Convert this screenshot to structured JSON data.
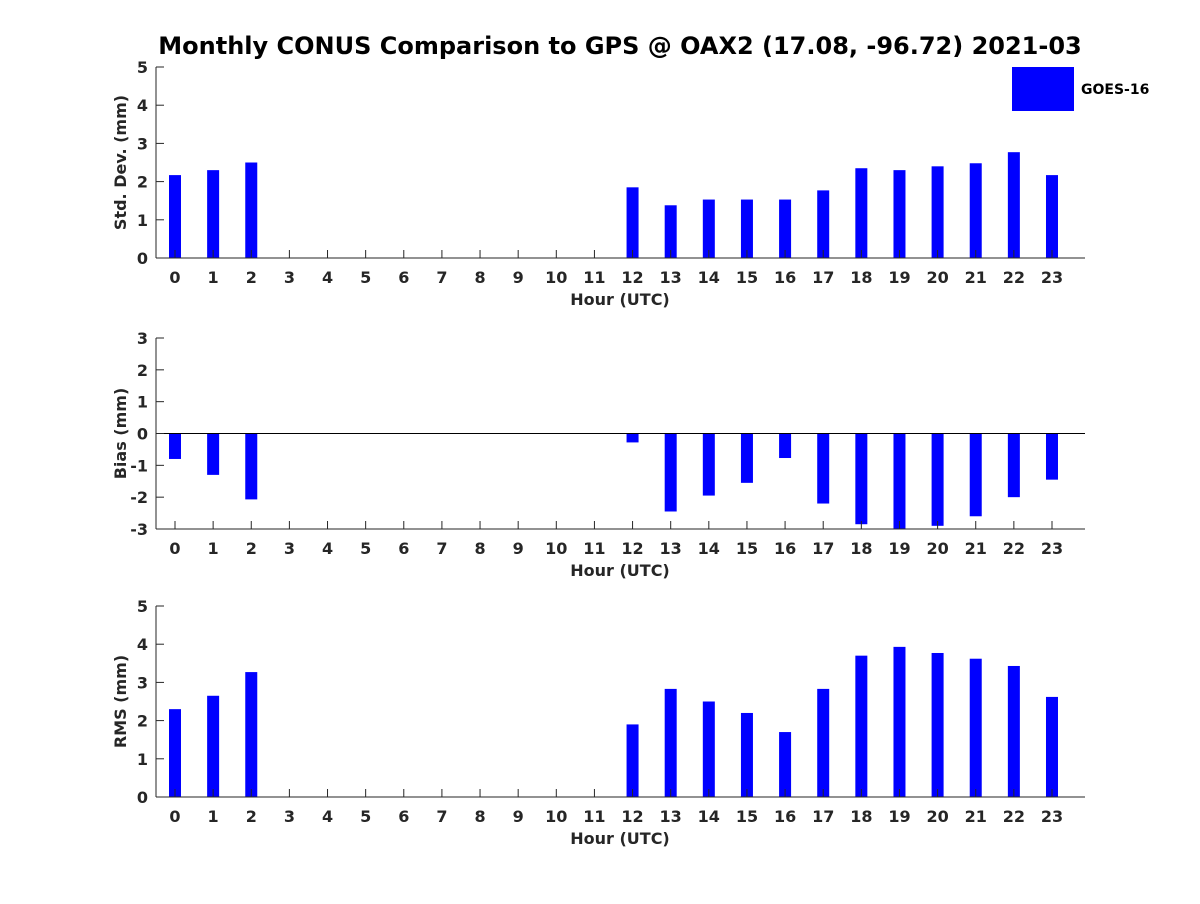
{
  "title": "Monthly CONUS Comparison to GPS @ OAX2 (17.08, -96.72) 2021-03",
  "legend": {
    "label": "GOES-16",
    "color": "#0000ff",
    "placement": "top-right"
  },
  "colors": {
    "bar": "#0000ff",
    "axis": "#262626",
    "text": "#262626"
  },
  "chart_data": [
    {
      "type": "bar",
      "xlabel": "Hour (UTC)",
      "ylabel": "Std. Dev. (mm)",
      "ylim": [
        0,
        5
      ],
      "yticks": [
        0,
        1,
        2,
        3,
        4,
        5
      ],
      "categories": [
        "0",
        "1",
        "2",
        "3",
        "4",
        "5",
        "6",
        "7",
        "8",
        "9",
        "10",
        "11",
        "12",
        "13",
        "14",
        "15",
        "16",
        "17",
        "18",
        "19",
        "20",
        "21",
        "22",
        "23"
      ],
      "series": [
        {
          "name": "GOES-16",
          "values": [
            2.17,
            2.3,
            2.5,
            null,
            null,
            null,
            null,
            null,
            null,
            null,
            null,
            null,
            1.85,
            1.38,
            1.53,
            1.53,
            1.53,
            1.77,
            2.35,
            2.3,
            2.4,
            2.48,
            2.77,
            2.17
          ]
        }
      ],
      "grid": false
    },
    {
      "type": "bar",
      "xlabel": "Hour (UTC)",
      "ylabel": "Bias (mm)",
      "ylim": [
        -3,
        3
      ],
      "yticks": [
        -3,
        -2,
        -1,
        0,
        1,
        2,
        3
      ],
      "zero_line": true,
      "categories": [
        "0",
        "1",
        "2",
        "3",
        "4",
        "5",
        "6",
        "7",
        "8",
        "9",
        "10",
        "11",
        "12",
        "13",
        "14",
        "15",
        "16",
        "17",
        "18",
        "19",
        "20",
        "21",
        "22",
        "23"
      ],
      "series": [
        {
          "name": "GOES-16",
          "values": [
            -0.8,
            -1.3,
            -2.07,
            null,
            null,
            null,
            null,
            null,
            null,
            null,
            null,
            null,
            -0.28,
            -2.45,
            -1.95,
            -1.55,
            -0.77,
            -2.2,
            -2.85,
            -3.0,
            -2.9,
            -2.6,
            -2.0,
            -1.45
          ]
        }
      ],
      "grid": false
    },
    {
      "type": "bar",
      "xlabel": "Hour (UTC)",
      "ylabel": "RMS (mm)",
      "ylim": [
        0,
        5
      ],
      "yticks": [
        0,
        1,
        2,
        3,
        4,
        5
      ],
      "categories": [
        "0",
        "1",
        "2",
        "3",
        "4",
        "5",
        "6",
        "7",
        "8",
        "9",
        "10",
        "11",
        "12",
        "13",
        "14",
        "15",
        "16",
        "17",
        "18",
        "19",
        "20",
        "21",
        "22",
        "23"
      ],
      "series": [
        {
          "name": "GOES-16",
          "values": [
            2.3,
            2.65,
            3.27,
            null,
            null,
            null,
            null,
            null,
            null,
            null,
            null,
            null,
            1.9,
            2.83,
            2.5,
            2.2,
            1.7,
            2.83,
            3.7,
            3.93,
            3.77,
            3.62,
            3.43,
            2.62
          ]
        }
      ],
      "grid": false
    }
  ]
}
